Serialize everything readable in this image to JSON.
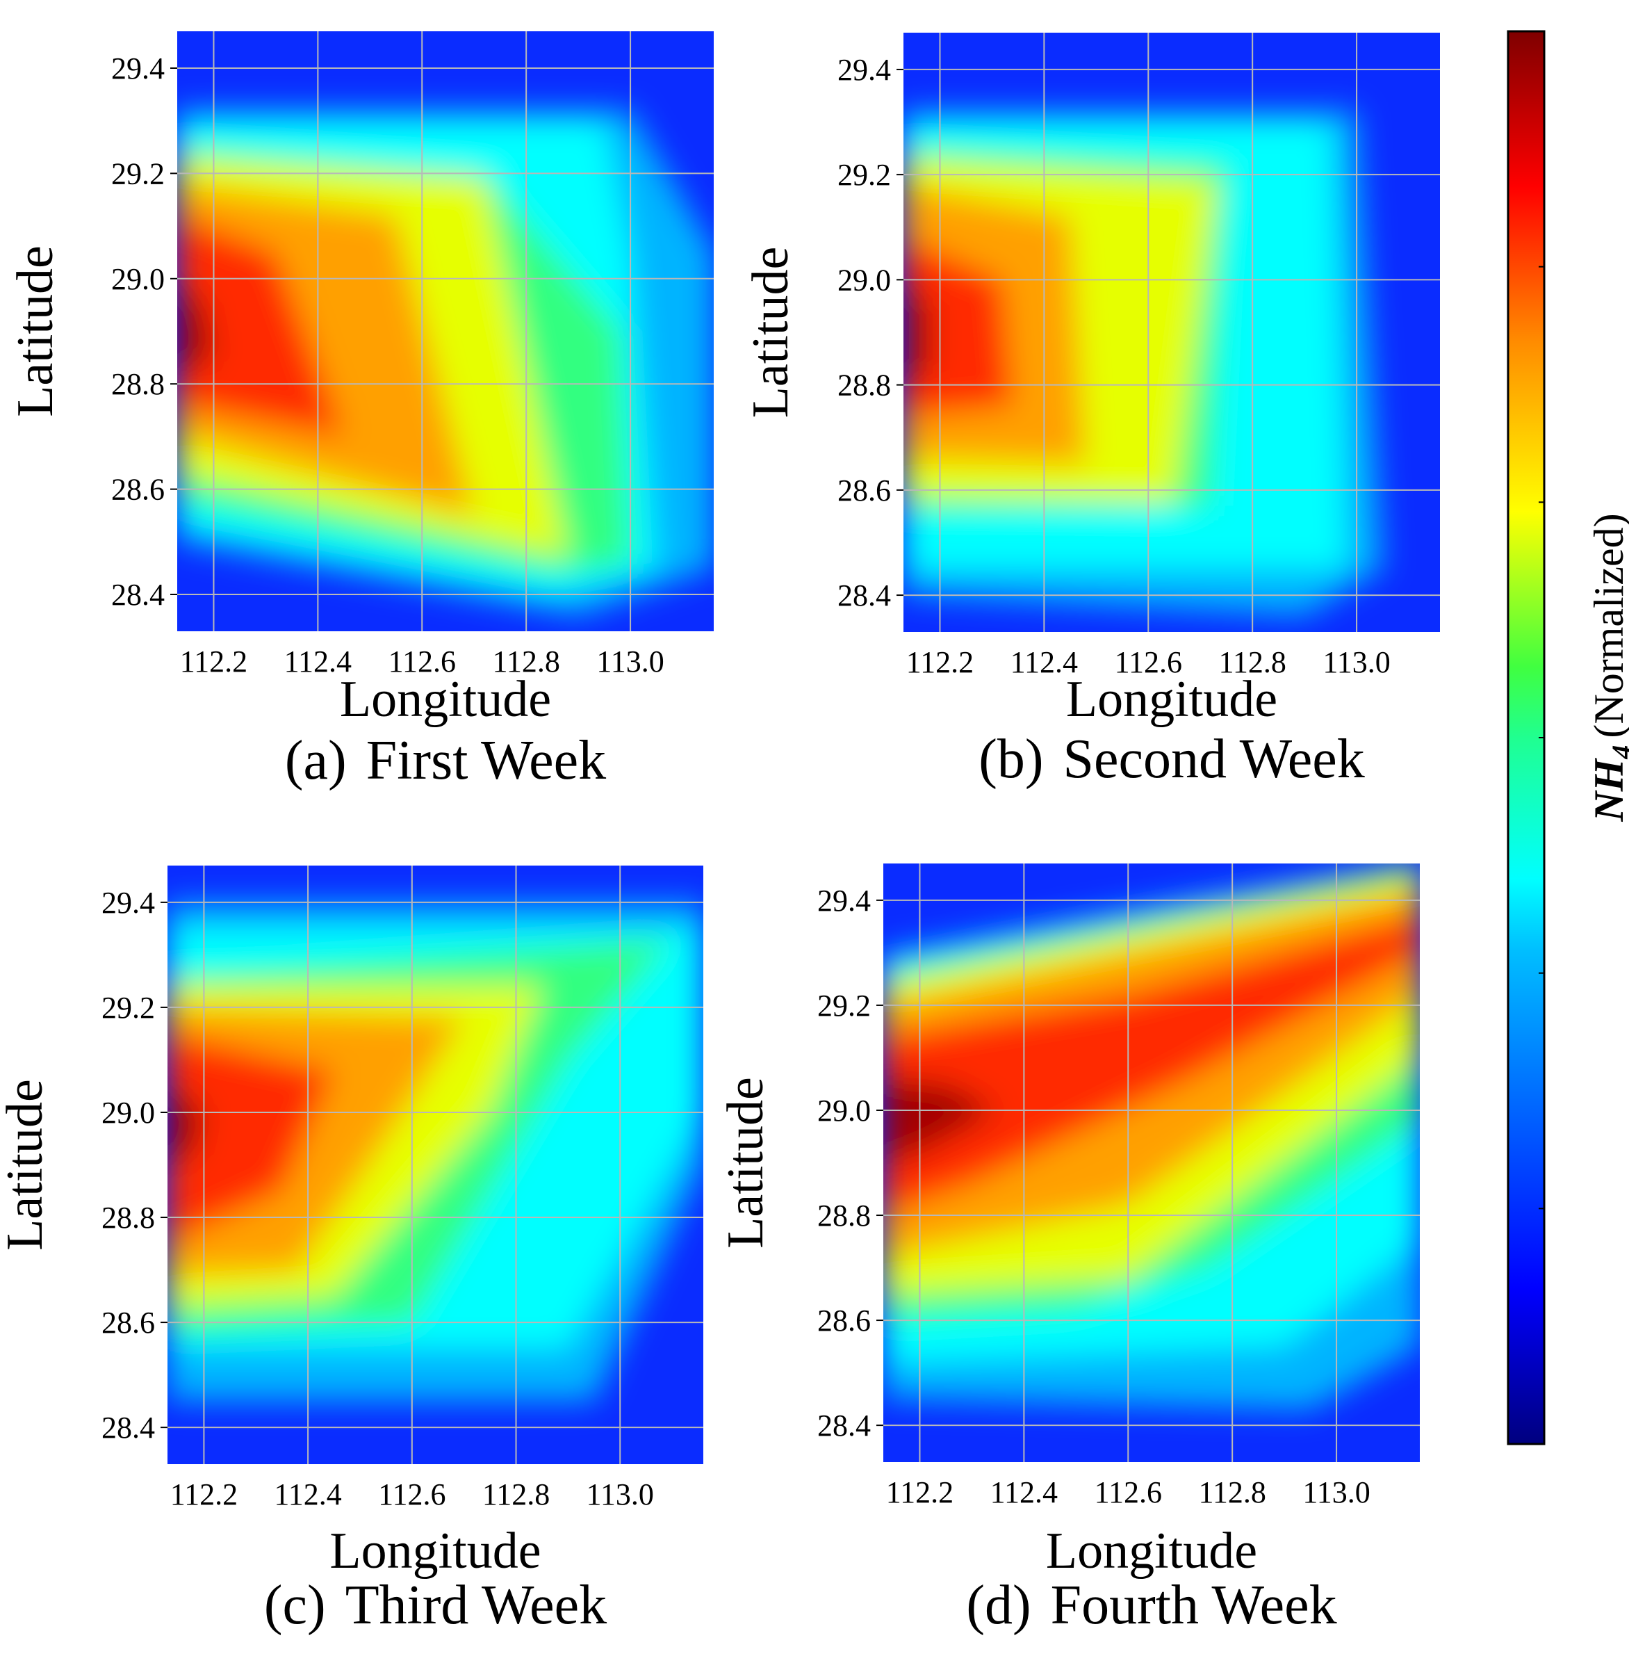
{
  "chart_data": [
    {
      "type": "heatmap",
      "panel": "a",
      "caption_letter": "(a)",
      "caption_title": "First Week",
      "xlabel": "Longitude",
      "ylabel": "Latitude",
      "xlim": [
        112.13,
        113.16
      ],
      "ylim": [
        28.33,
        29.47
      ],
      "xticks": [
        "112.2",
        "112.4",
        "112.6",
        "112.8",
        "113.0"
      ],
      "yticks": [
        "28.4",
        "28.6",
        "28.8",
        "29.0",
        "29.2",
        "29.4"
      ],
      "grid": true,
      "hotspot": {
        "lon": 112.13,
        "lat": 28.9,
        "value": 1.0
      },
      "pattern": "high values on the west edge around lat 28.9, tapering to a point near lon 112.85 / lat 28.47; low values at north, south and east edges"
    },
    {
      "type": "heatmap",
      "panel": "b",
      "caption_letter": "(b)",
      "caption_title": "Second Week",
      "xlabel": "Longitude",
      "ylabel": "Latitude",
      "xlim": [
        112.13,
        113.16
      ],
      "ylim": [
        28.33,
        29.47
      ],
      "xticks": [
        "112.2",
        "112.4",
        "112.6",
        "112.8",
        "113.0"
      ],
      "yticks": [
        "28.4",
        "28.6",
        "28.8",
        "29.0",
        "29.2",
        "29.4"
      ],
      "grid": true,
      "hotspot": {
        "lon": 112.13,
        "lat": 28.9,
        "value": 1.0
      },
      "pattern": "high values on the west edge around lat 28.9 forming a block that fades eastward by lon 112.7; low values at the edges"
    },
    {
      "type": "heatmap",
      "panel": "c",
      "caption_letter": "(c)",
      "caption_title": "Third Week",
      "xlabel": "Longitude",
      "ylabel": "Latitude",
      "xlim": [
        112.13,
        113.16
      ],
      "ylim": [
        28.33,
        29.47
      ],
      "xticks": [
        "112.2",
        "112.4",
        "112.6",
        "112.8",
        "113.0"
      ],
      "yticks": [
        "28.4",
        "28.6",
        "28.8",
        "29.0",
        "29.2",
        "29.4"
      ],
      "grid": true,
      "hotspot": {
        "lon": 112.13,
        "lat": 29.0,
        "value": 1.0
      },
      "pattern": "high values on the west edge around lat 29.0, band tilting toward the north-east corner near lon 113.1 / lat 29.33; low values in the south-east"
    },
    {
      "type": "heatmap",
      "panel": "d",
      "caption_letter": "(d)",
      "caption_title": "Fourth Week",
      "xlabel": "Longitude",
      "ylabel": "Latitude",
      "xlim": [
        112.13,
        113.16
      ],
      "ylim": [
        28.33,
        29.47
      ],
      "xticks": [
        "112.2",
        "112.4",
        "112.6",
        "112.8",
        "113.0"
      ],
      "yticks": [
        "28.4",
        "28.6",
        "28.8",
        "29.0",
        "29.2",
        "29.4"
      ],
      "grid": true,
      "hotspot": {
        "lon": 112.2,
        "lat": 29.0,
        "value": 1.0
      },
      "pattern": "broad diagonal high band from the west edge at lat 29.0 rising to the north-east corner; low values in the north-west corner and south-east"
    }
  ],
  "colorbar": {
    "label_main": "NH",
    "label_sub": "4",
    "label_rest": "(Normalized)",
    "colormap": "jet",
    "range": [
      0,
      1
    ]
  },
  "colors": {
    "grid": "#b8b8b8",
    "jet_stops": [
      "#00007f",
      "#0000ff",
      "#007fff",
      "#00ffff",
      "#7fff7f",
      "#ffff00",
      "#ff7f00",
      "#ff0000",
      "#7f0000"
    ]
  }
}
